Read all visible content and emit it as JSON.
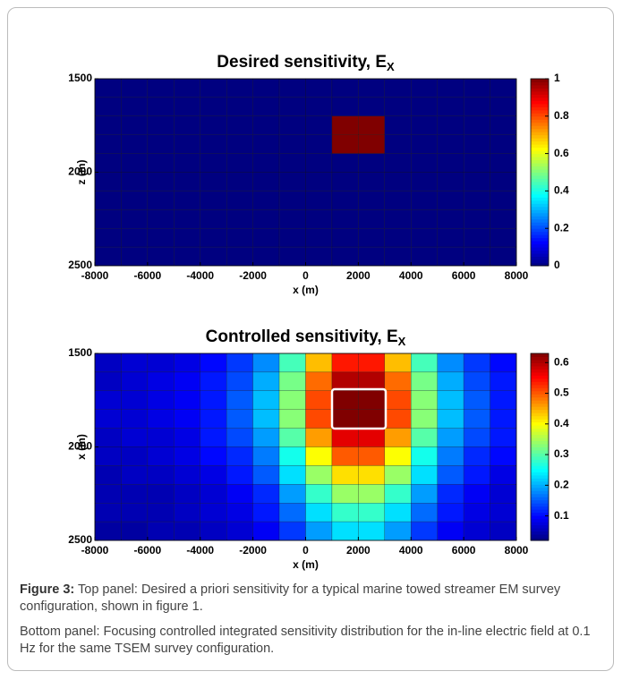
{
  "chart_data": [
    {
      "type": "heatmap",
      "title": "Desired sensitivity, E",
      "title_subscript": "X",
      "xlabel": "x (m)",
      "ylabel": "z (m)",
      "colorscale": "jet",
      "y_reversed": true,
      "xlim": [
        -8000,
        8000
      ],
      "ylim": [
        1500,
        2500
      ],
      "xticks": [
        -8000,
        -6000,
        -4000,
        -2000,
        0,
        2000,
        4000,
        6000,
        8000
      ],
      "yticks": [
        1500,
        2000,
        2500
      ],
      "zlim": [
        0,
        1
      ],
      "zticks": [
        0,
        0.2,
        0.4,
        0.6,
        0.8,
        1
      ],
      "x": [
        -7500,
        -6500,
        -5500,
        -4500,
        -3500,
        -2500,
        -1500,
        -500,
        500,
        1500,
        2500,
        3500,
        4500,
        5500,
        6500,
        7500
      ],
      "y": [
        1550,
        1650,
        1750,
        1850,
        1950,
        2050,
        2150,
        2250,
        2350,
        2450
      ],
      "values": [
        [
          0,
          0,
          0,
          0,
          0,
          0,
          0,
          0,
          0,
          0,
          0,
          0,
          0,
          0,
          0,
          0
        ],
        [
          0,
          0,
          0,
          0,
          0,
          0,
          0,
          0,
          0,
          0,
          0,
          0,
          0,
          0,
          0,
          0
        ],
        [
          0,
          0,
          0,
          0,
          0,
          0,
          0,
          0,
          0,
          1,
          1,
          0,
          0,
          0,
          0,
          0
        ],
        [
          0,
          0,
          0,
          0,
          0,
          0,
          0,
          0,
          0,
          1,
          1,
          0,
          0,
          0,
          0,
          0
        ],
        [
          0,
          0,
          0,
          0,
          0,
          0,
          0,
          0,
          0,
          0,
          0,
          0,
          0,
          0,
          0,
          0
        ],
        [
          0,
          0,
          0,
          0,
          0,
          0,
          0,
          0,
          0,
          0,
          0,
          0,
          0,
          0,
          0,
          0
        ],
        [
          0,
          0,
          0,
          0,
          0,
          0,
          0,
          0,
          0,
          0,
          0,
          0,
          0,
          0,
          0,
          0
        ],
        [
          0,
          0,
          0,
          0,
          0,
          0,
          0,
          0,
          0,
          0,
          0,
          0,
          0,
          0,
          0,
          0
        ],
        [
          0,
          0,
          0,
          0,
          0,
          0,
          0,
          0,
          0,
          0,
          0,
          0,
          0,
          0,
          0,
          0
        ],
        [
          0,
          0,
          0,
          0,
          0,
          0,
          0,
          0,
          0,
          0,
          0,
          0,
          0,
          0,
          0,
          0
        ]
      ]
    },
    {
      "type": "heatmap",
      "title": "Controlled sensitivity, E",
      "title_subscript": "X",
      "xlabel": "x (m)",
      "ylabel": "x (m)",
      "colorscale": "jet",
      "y_reversed": true,
      "xlim": [
        -8000,
        8000
      ],
      "ylim": [
        1500,
        2500
      ],
      "xticks": [
        -8000,
        -6000,
        -4000,
        -2000,
        0,
        2000,
        4000,
        6000,
        8000
      ],
      "yticks": [
        1500,
        2000,
        2500
      ],
      "zlim": [
        0.02,
        0.63
      ],
      "zticks": [
        0.1,
        0.2,
        0.3,
        0.4,
        0.5,
        0.6
      ],
      "x": [
        -7500,
        -6500,
        -5500,
        -4500,
        -3500,
        -2500,
        -1500,
        -500,
        500,
        1500,
        2500,
        3500,
        4500,
        5500,
        6500,
        7500
      ],
      "y": [
        1550,
        1650,
        1750,
        1850,
        1950,
        2050,
        2150,
        2250,
        2350,
        2450
      ],
      "values": [
        [
          0.06,
          0.07,
          0.07,
          0.08,
          0.1,
          0.13,
          0.18,
          0.29,
          0.44,
          0.54,
          0.54,
          0.44,
          0.29,
          0.18,
          0.13,
          0.1
        ],
        [
          0.06,
          0.07,
          0.08,
          0.09,
          0.11,
          0.14,
          0.2,
          0.32,
          0.49,
          0.6,
          0.6,
          0.49,
          0.32,
          0.2,
          0.14,
          0.11
        ],
        [
          0.07,
          0.07,
          0.08,
          0.09,
          0.11,
          0.15,
          0.21,
          0.33,
          0.51,
          0.63,
          0.63,
          0.51,
          0.33,
          0.21,
          0.15,
          0.11
        ],
        [
          0.07,
          0.07,
          0.08,
          0.09,
          0.11,
          0.15,
          0.21,
          0.33,
          0.51,
          0.63,
          0.63,
          0.51,
          0.33,
          0.21,
          0.15,
          0.11
        ],
        [
          0.06,
          0.07,
          0.07,
          0.08,
          0.11,
          0.14,
          0.19,
          0.3,
          0.46,
          0.57,
          0.57,
          0.46,
          0.3,
          0.19,
          0.14,
          0.11
        ],
        [
          0.06,
          0.06,
          0.07,
          0.08,
          0.1,
          0.12,
          0.17,
          0.26,
          0.4,
          0.5,
          0.5,
          0.4,
          0.26,
          0.17,
          0.12,
          0.1
        ],
        [
          0.05,
          0.06,
          0.06,
          0.07,
          0.08,
          0.11,
          0.15,
          0.23,
          0.34,
          0.42,
          0.42,
          0.34,
          0.23,
          0.15,
          0.11,
          0.08
        ],
        [
          0.05,
          0.05,
          0.05,
          0.06,
          0.07,
          0.09,
          0.12,
          0.19,
          0.28,
          0.34,
          0.34,
          0.28,
          0.19,
          0.12,
          0.09,
          0.07
        ],
        [
          0.05,
          0.05,
          0.05,
          0.06,
          0.07,
          0.08,
          0.11,
          0.16,
          0.23,
          0.28,
          0.28,
          0.23,
          0.16,
          0.11,
          0.08,
          0.07
        ],
        [
          0.04,
          0.04,
          0.05,
          0.05,
          0.06,
          0.07,
          0.09,
          0.13,
          0.19,
          0.23,
          0.23,
          0.19,
          0.13,
          0.09,
          0.07,
          0.06
        ]
      ]
    }
  ],
  "caption": {
    "label": "Figure 3:",
    "text1": "Top panel: Desired a priori sensitivity for a typical marine towed streamer EM survey configuration, shown in figure 1.",
    "text2": "Bottom panel: Focusing controlled integrated sensitivity distribution for the in-line electric field at 0.1 Hz for the same TSEM survey configuration."
  }
}
